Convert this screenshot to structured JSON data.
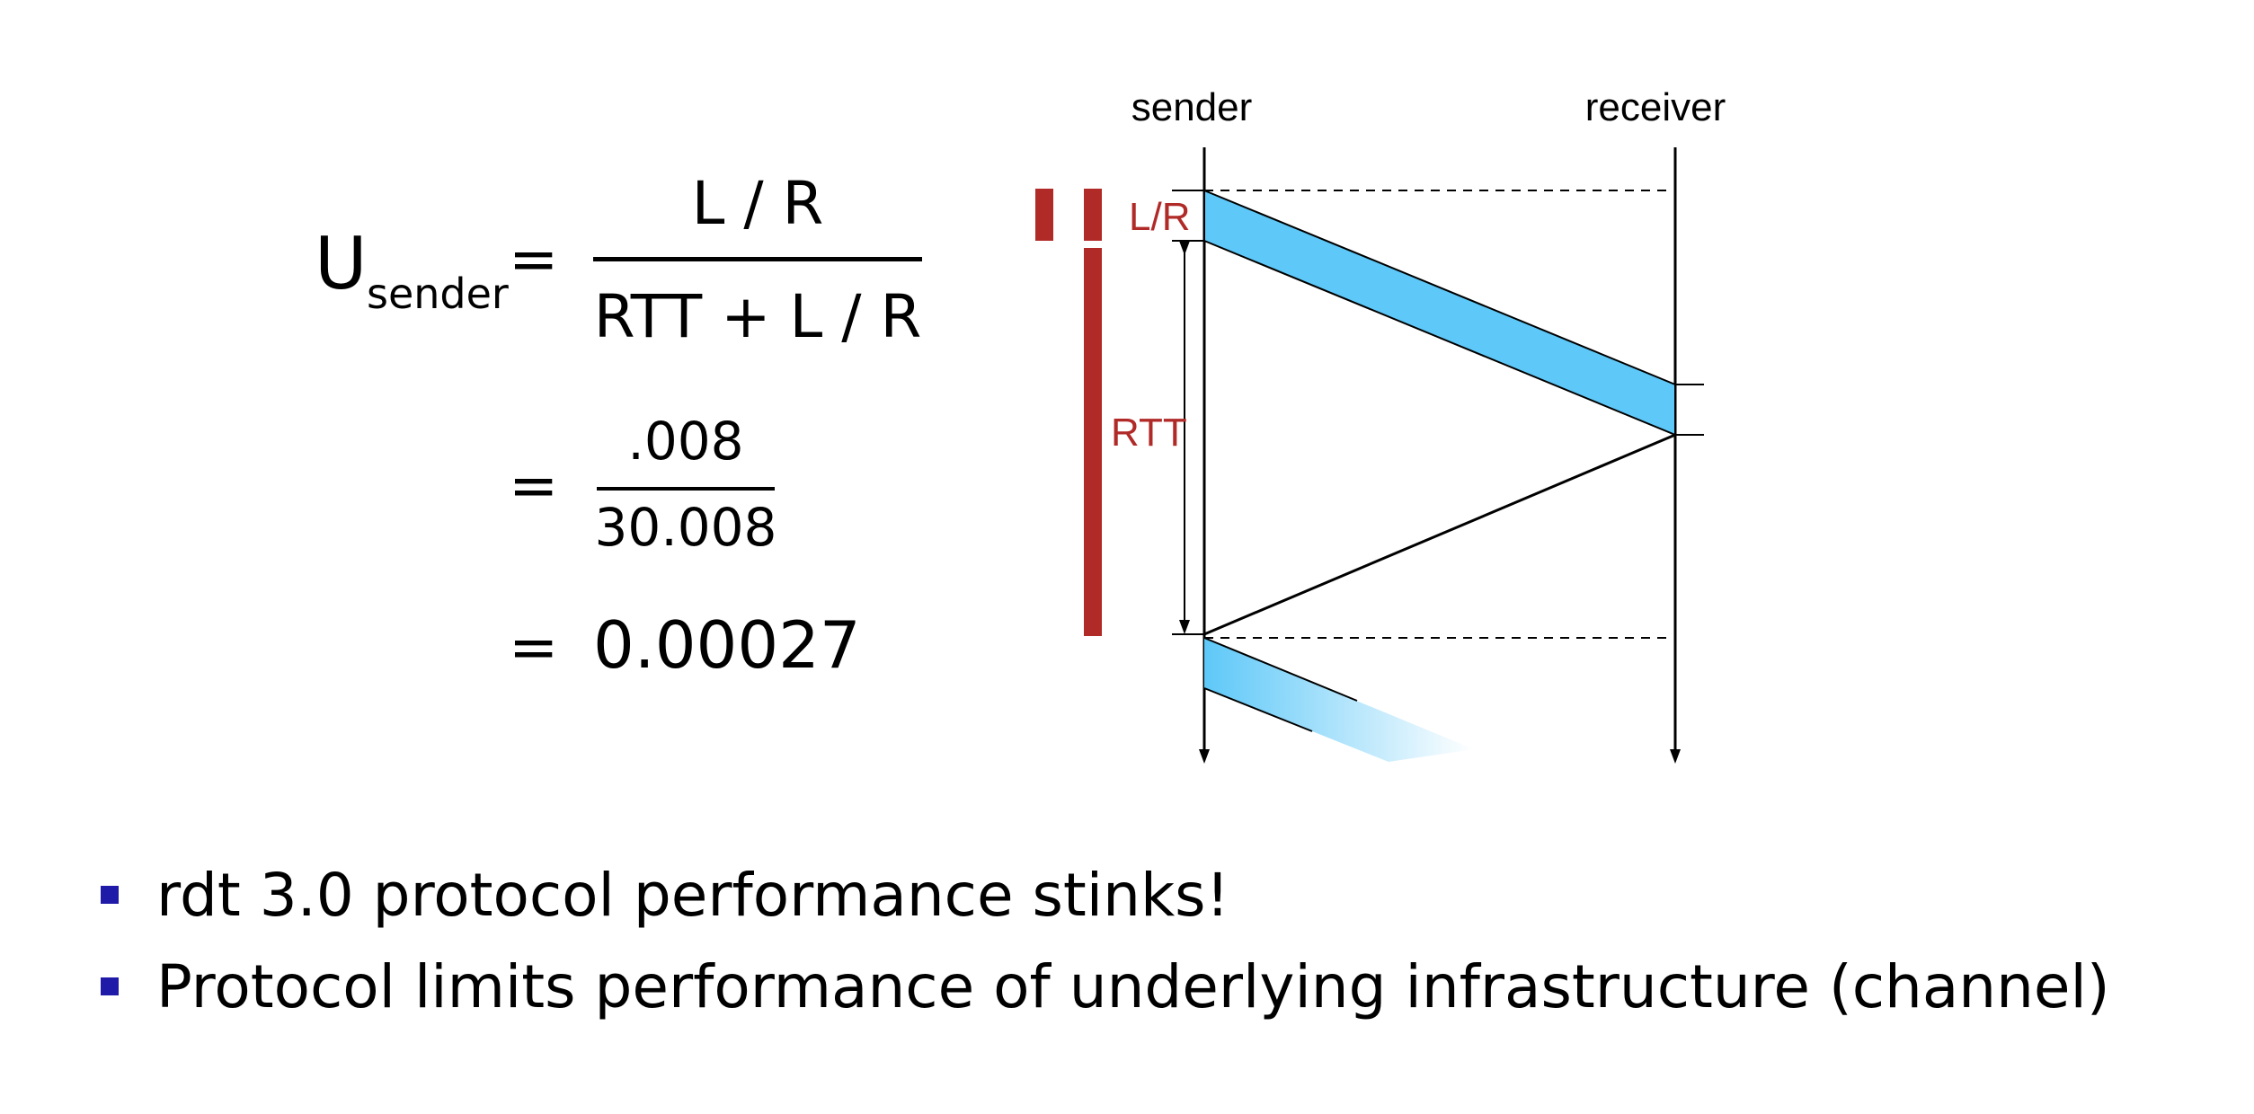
{
  "formula": {
    "symbol": "U",
    "subscript": "sender",
    "equals": "=",
    "fraction1": {
      "numerator": "L / R",
      "denominator": "RTT + L / R"
    },
    "fraction2": {
      "numerator": ".008",
      "denominator": "30.008"
    },
    "result": "0.00027"
  },
  "diagram": {
    "sender_label": "sender",
    "receiver_label": "receiver",
    "lr_label": "L/R",
    "rtt_label": "RTT",
    "colors": {
      "packet_fill": "#5ec8f8",
      "accent_red": "#b02a28",
      "line": "#000000"
    }
  },
  "bullets": [
    {
      "text": "rdt 3.0 protocol performance stinks!"
    },
    {
      "text": "Protocol limits performance of underlying infrastructure (channel)"
    }
  ]
}
